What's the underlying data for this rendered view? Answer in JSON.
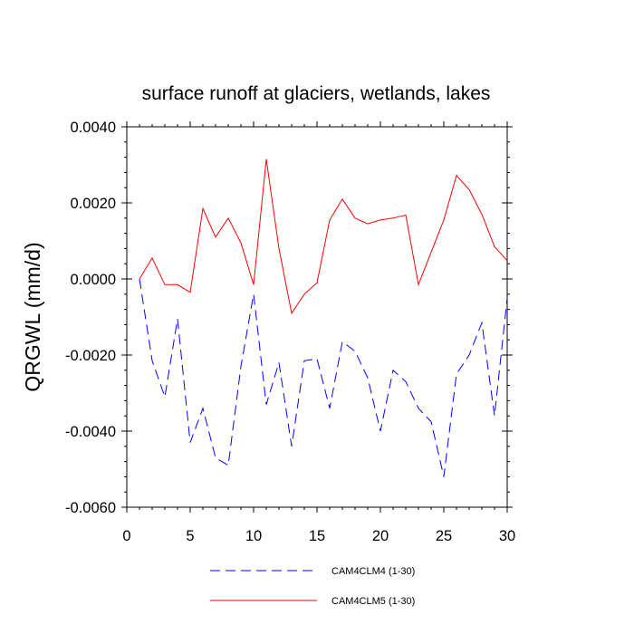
{
  "chart_data": {
    "type": "line",
    "title": "surface runoff at glaciers, wetlands, lakes",
    "xlabel": "",
    "ylabel": "QRGWL  (mm/d)",
    "xlim": [
      0,
      30
    ],
    "ylim": [
      -0.006,
      0.004
    ],
    "x_ticks": [
      "0",
      "5",
      "10",
      "15",
      "20",
      "25",
      "30"
    ],
    "y_ticks": [
      "0.0040",
      "0.0020",
      "0.0000",
      "-0.0020",
      "-0.0040",
      "-0.0060"
    ],
    "grid": false,
    "legend_position": "bottom",
    "x": [
      1,
      2,
      3,
      4,
      5,
      6,
      7,
      8,
      9,
      10,
      11,
      12,
      13,
      14,
      15,
      16,
      17,
      18,
      19,
      20,
      21,
      22,
      23,
      24,
      25,
      26,
      27,
      28,
      29,
      30
    ],
    "series": [
      {
        "name": "CAM4CLM4 (1-30)",
        "color": "#0000ff",
        "dash": "dashed",
        "values": [
          0.0,
          -0.00215,
          -0.0031,
          -0.00105,
          -0.0043,
          -0.0034,
          -0.0047,
          -0.0049,
          -0.0023,
          -0.0004,
          -0.0033,
          -0.0022,
          -0.0044,
          -0.00215,
          -0.0021,
          -0.0034,
          -0.00165,
          -0.0019,
          -0.0026,
          -0.004,
          -0.0024,
          -0.0027,
          -0.0034,
          -0.00375,
          -0.0052,
          -0.0025,
          -0.002,
          -0.00115,
          -0.0036,
          -0.0005
        ]
      },
      {
        "name": "CAM4CLM5 (1-30)",
        "color": "#ff0000",
        "dash": "solid",
        "values": [
          0.0,
          0.00055,
          -0.00015,
          -0.00015,
          -0.00035,
          0.00185,
          0.0011,
          0.0016,
          0.00095,
          -0.00015,
          0.00315,
          0.0008,
          -0.0009,
          -0.0004,
          -0.0001,
          0.00155,
          0.0021,
          0.0016,
          0.00145,
          0.00155,
          0.0016,
          0.00168,
          -0.00015,
          0.0007,
          0.00155,
          0.00272,
          0.00235,
          0.0017,
          0.00085,
          0.00048
        ]
      }
    ]
  }
}
